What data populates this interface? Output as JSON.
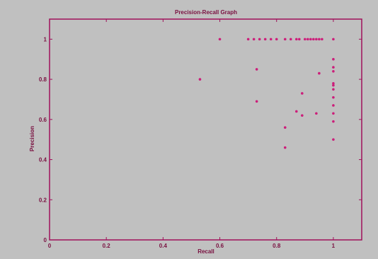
{
  "chart_data": {
    "type": "scatter",
    "title": "Precision-Recall Graph",
    "xlabel": "Recall",
    "ylabel": "Precision",
    "xlim": [
      0,
      1.1
    ],
    "ylim": [
      0,
      1.1
    ],
    "grid": false,
    "xticks": [
      "0",
      "0.2",
      "0.4",
      "0.6",
      "0.8",
      "1"
    ],
    "yticks": [
      "0",
      "0.2",
      "0.4",
      "0.6",
      "0.8",
      "1"
    ],
    "marker_color": "#cc1e7a",
    "axis_color": "#a0105a",
    "points": [
      {
        "x": 0.53,
        "y": 0.8
      },
      {
        "x": 0.6,
        "y": 1.0
      },
      {
        "x": 0.7,
        "y": 1.0
      },
      {
        "x": 0.72,
        "y": 1.0
      },
      {
        "x": 0.74,
        "y": 1.0
      },
      {
        "x": 0.76,
        "y": 1.0
      },
      {
        "x": 0.78,
        "y": 1.0
      },
      {
        "x": 0.8,
        "y": 1.0
      },
      {
        "x": 0.83,
        "y": 1.0
      },
      {
        "x": 0.85,
        "y": 1.0
      },
      {
        "x": 0.87,
        "y": 1.0
      },
      {
        "x": 0.88,
        "y": 1.0
      },
      {
        "x": 0.9,
        "y": 1.0
      },
      {
        "x": 0.91,
        "y": 1.0
      },
      {
        "x": 0.92,
        "y": 1.0
      },
      {
        "x": 0.93,
        "y": 1.0
      },
      {
        "x": 0.94,
        "y": 1.0
      },
      {
        "x": 0.95,
        "y": 1.0
      },
      {
        "x": 0.96,
        "y": 1.0
      },
      {
        "x": 1.0,
        "y": 1.0
      },
      {
        "x": 0.73,
        "y": 0.85
      },
      {
        "x": 0.73,
        "y": 0.69
      },
      {
        "x": 0.83,
        "y": 0.56
      },
      {
        "x": 0.83,
        "y": 0.46
      },
      {
        "x": 0.87,
        "y": 0.64
      },
      {
        "x": 0.89,
        "y": 0.62
      },
      {
        "x": 0.89,
        "y": 0.73
      },
      {
        "x": 0.94,
        "y": 0.63
      },
      {
        "x": 0.95,
        "y": 0.83
      },
      {
        "x": 1.0,
        "y": 0.9
      },
      {
        "x": 1.0,
        "y": 0.86
      },
      {
        "x": 1.0,
        "y": 0.84
      },
      {
        "x": 1.0,
        "y": 0.78
      },
      {
        "x": 1.0,
        "y": 0.77
      },
      {
        "x": 1.0,
        "y": 0.75
      },
      {
        "x": 1.0,
        "y": 0.71
      },
      {
        "x": 1.0,
        "y": 0.67
      },
      {
        "x": 1.0,
        "y": 0.63
      },
      {
        "x": 1.0,
        "y": 0.59
      },
      {
        "x": 1.0,
        "y": 0.5
      }
    ]
  }
}
